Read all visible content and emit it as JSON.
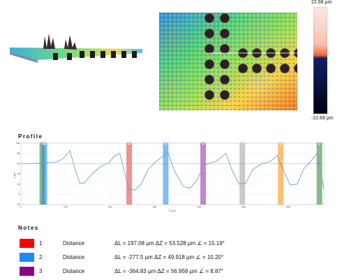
{
  "colorbar": {
    "max_label": "22.68 µm",
    "min_label": "-22.68 µm"
  },
  "profile": {
    "title": "Profile"
  },
  "chart_data": {
    "type": "line",
    "title": "",
    "xlabel": "X µm",
    "ylabel": "Z µm",
    "xlim": [
      0,
      680
    ],
    "ylim": [
      -20,
      100
    ],
    "x_ticks": [
      0,
      100,
      200,
      300,
      400,
      500,
      600
    ],
    "y_ticks": [
      -20,
      0,
      20,
      40,
      60,
      80,
      100
    ],
    "grid": true,
    "reference_line_y": 60,
    "series": [
      {
        "values_x": [
          0,
          20,
          40,
          60,
          80,
          95,
          110,
          122,
          132,
          142,
          160,
          180,
          198,
          210,
          222,
          232,
          242,
          255,
          270,
          285,
          300,
          315,
          330,
          345,
          365,
          380,
          395,
          410,
          425,
          440,
          460,
          475,
          490,
          505,
          520,
          540,
          560,
          575,
          590,
          605,
          620,
          635,
          650,
          665,
          680
        ],
        "values_y": [
          60,
          60,
          61,
          62,
          63,
          70,
          85,
          48,
          22,
          22,
          40,
          55,
          62,
          75,
          80,
          45,
          10,
          8,
          20,
          48,
          62,
          72,
          82,
          45,
          15,
          12,
          28,
          55,
          62,
          65,
          80,
          45,
          20,
          22,
          48,
          60,
          64,
          76,
          45,
          18,
          20,
          50,
          64,
          80,
          10
        ]
      }
    ],
    "markers": [
      {
        "label": "1",
        "x": 48,
        "color": "#2e7d32"
      },
      {
        "label": "2",
        "x": 48,
        "color": "#1e88e5"
      },
      {
        "label": "3",
        "x": 243,
        "color": "#e53935"
      },
      {
        "label": "4",
        "x": 325,
        "color": "#1e88e5"
      },
      {
        "label": "5",
        "x": 409,
        "color": "#8e24aa"
      },
      {
        "label": "6",
        "x": 497,
        "color": "#9e9e9e"
      },
      {
        "label": "7",
        "x": 583,
        "color": "#fb8c00"
      },
      {
        "label": "8",
        "x": 670,
        "color": "#2e7d32"
      }
    ]
  },
  "notes": {
    "title": "Notes",
    "items": [
      {
        "num": "1",
        "type": "Distance",
        "color": "#ff0000",
        "measure": "ΔL = 197.08 µm ΔZ = 53.528 µm ∠ = 15.19°"
      },
      {
        "num": "2",
        "type": "Distance",
        "color": "#1e88ff",
        "measure": "ΔL = -277.5 µm ΔZ = 49.918 µm ∠ = 10.20°"
      },
      {
        "num": "3",
        "type": "Distance",
        "color": "#8b008b",
        "measure": "ΔL = -364.83 µm ΔZ = 56.958 µm ∠ = 8.87°"
      }
    ]
  }
}
